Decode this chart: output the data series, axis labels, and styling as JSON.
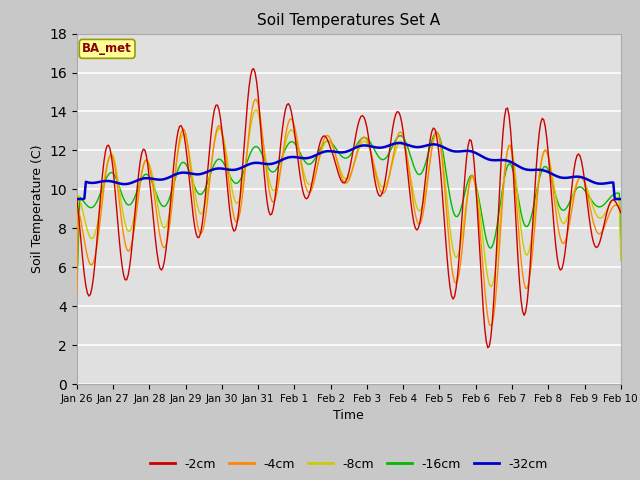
{
  "title": "Soil Temperatures Set A",
  "xlabel": "Time",
  "ylabel": "Soil Temperature (C)",
  "ylim": [
    0,
    18
  ],
  "yticks": [
    0,
    2,
    4,
    6,
    8,
    10,
    12,
    14,
    16,
    18
  ],
  "annotation": "BA_met",
  "fig_facecolor": "#c8c8c8",
  "axes_facecolor": "#e0e0e0",
  "grid_color": "#ffffff",
  "line_colors": {
    "-2cm": "#cc0000",
    "-4cm": "#ff8800",
    "-8cm": "#cccc00",
    "-16cm": "#00bb00",
    "-32cm": "#0000cc"
  },
  "x_tick_labels": [
    "Jan 26",
    "Jan 27",
    "Jan 28",
    "Jan 29",
    "Jan 30",
    "Jan 31",
    "Feb 1",
    "Feb 2",
    "Feb 3",
    "Feb 4",
    "Feb 5",
    "Feb 6",
    "Feb 7",
    "Feb 8",
    "Feb 9",
    "Feb 10"
  ],
  "figsize": [
    6.4,
    4.8
  ],
  "dpi": 100
}
